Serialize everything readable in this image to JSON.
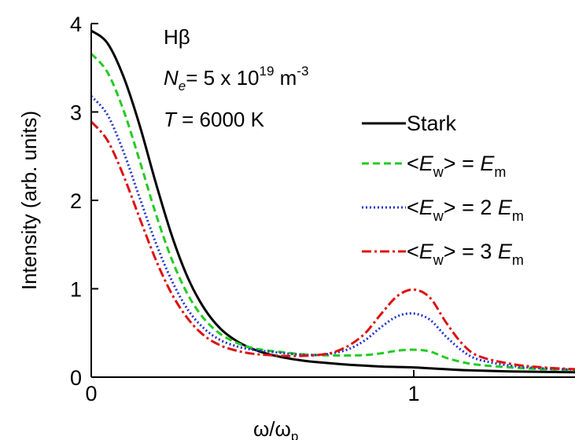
{
  "chart_data": {
    "type": "line",
    "title": "",
    "xlabel": "ω/ω",
    "xlabel_sub": "p",
    "ylabel": "Intensity (arb. units)",
    "xlim": [
      0,
      1.5
    ],
    "ylim": [
      0,
      4
    ],
    "xticks": [
      0,
      1
    ],
    "xtick_labels": [
      "0",
      "1"
    ],
    "yticks": [
      0,
      1,
      2,
      3,
      4
    ],
    "ytick_labels": [
      "0",
      "1",
      "2",
      "3",
      "4"
    ],
    "grid": false,
    "annotations": {
      "line1": "Hβ",
      "line2_var": "N",
      "line2_sub": "e",
      "line2_value": "= 5 x 10",
      "line2_exp": "19",
      "line2_unit": " m",
      "line2_unit_exp": "-3",
      "line3_var": "T",
      "line3_value": " = 6000 K"
    },
    "legend": {
      "position": "right",
      "entries": [
        {
          "text": "Stark"
        },
        {
          "prefix": "<",
          "var": "E",
          "sub": "w",
          "mid": "> = ",
          "var2": "E",
          "sub2": "m"
        },
        {
          "prefix": "<",
          "var": "E",
          "sub": "w",
          "mid": "> = 2 ",
          "var2": "E",
          "sub2": "m"
        },
        {
          "prefix": "<",
          "var": "E",
          "sub": "w",
          "mid": "> = 3 ",
          "var2": "E",
          "sub2": "m"
        }
      ]
    },
    "series": [
      {
        "style": "solid",
        "color": "#000000",
        "x": [
          0,
          0.05,
          0.1,
          0.15,
          0.2,
          0.25,
          0.3,
          0.35,
          0.4,
          0.45,
          0.5,
          0.55,
          0.6,
          0.65,
          0.7,
          0.75,
          0.8,
          0.85,
          0.9,
          0.95,
          1.0,
          1.05,
          1.1,
          1.15,
          1.2,
          1.3,
          1.4,
          1.5
        ],
        "y": [
          3.92,
          3.78,
          3.4,
          2.85,
          2.2,
          1.6,
          1.12,
          0.78,
          0.55,
          0.41,
          0.32,
          0.26,
          0.22,
          0.19,
          0.17,
          0.155,
          0.14,
          0.13,
          0.12,
          0.115,
          0.11,
          0.1,
          0.09,
          0.08,
          0.075,
          0.065,
          0.06,
          0.055
        ]
      },
      {
        "style": "dash",
        "color": "#22cc22",
        "x": [
          0,
          0.05,
          0.1,
          0.15,
          0.2,
          0.25,
          0.3,
          0.35,
          0.4,
          0.45,
          0.5,
          0.55,
          0.6,
          0.65,
          0.7,
          0.75,
          0.8,
          0.85,
          0.9,
          0.95,
          1.0,
          1.05,
          1.1,
          1.15,
          1.2,
          1.3,
          1.4,
          1.5
        ],
        "y": [
          3.66,
          3.45,
          3.02,
          2.45,
          1.85,
          1.33,
          0.93,
          0.66,
          0.49,
          0.39,
          0.33,
          0.3,
          0.28,
          0.26,
          0.25,
          0.245,
          0.245,
          0.25,
          0.27,
          0.3,
          0.31,
          0.29,
          0.22,
          0.17,
          0.14,
          0.11,
          0.09,
          0.08
        ]
      },
      {
        "style": "dot",
        "color": "#2233cc",
        "x": [
          0,
          0.05,
          0.1,
          0.15,
          0.2,
          0.25,
          0.3,
          0.35,
          0.4,
          0.45,
          0.5,
          0.55,
          0.6,
          0.65,
          0.7,
          0.75,
          0.8,
          0.85,
          0.9,
          0.95,
          1.0,
          1.05,
          1.1,
          1.15,
          1.2,
          1.3,
          1.4,
          1.5
        ],
        "y": [
          3.18,
          2.97,
          2.55,
          2.03,
          1.52,
          1.09,
          0.76,
          0.55,
          0.42,
          0.35,
          0.31,
          0.29,
          0.27,
          0.255,
          0.25,
          0.27,
          0.32,
          0.42,
          0.57,
          0.69,
          0.72,
          0.65,
          0.46,
          0.3,
          0.2,
          0.13,
          0.1,
          0.085
        ]
      },
      {
        "style": "dashdot",
        "color": "#dd1111",
        "x": [
          0,
          0.05,
          0.1,
          0.15,
          0.2,
          0.25,
          0.3,
          0.35,
          0.4,
          0.45,
          0.5,
          0.55,
          0.6,
          0.65,
          0.7,
          0.75,
          0.8,
          0.85,
          0.9,
          0.95,
          1.0,
          1.05,
          1.1,
          1.15,
          1.2,
          1.3,
          1.4,
          1.5
        ],
        "y": [
          2.89,
          2.68,
          2.28,
          1.8,
          1.33,
          0.94,
          0.66,
          0.47,
          0.36,
          0.3,
          0.265,
          0.25,
          0.24,
          0.24,
          0.25,
          0.28,
          0.36,
          0.5,
          0.72,
          0.92,
          0.99,
          0.9,
          0.62,
          0.38,
          0.24,
          0.15,
          0.11,
          0.09
        ]
      }
    ]
  }
}
